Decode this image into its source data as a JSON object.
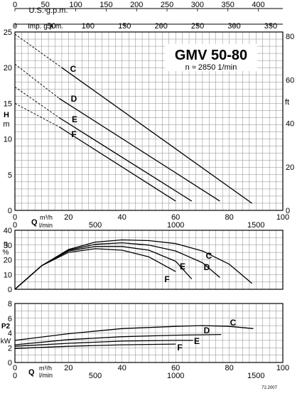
{
  "chart_data": [
    {
      "type": "line",
      "title": "GMV 50-80",
      "subtitle": "n ≈ 2850 1/min",
      "ylabel": "H\nm",
      "ylabel_right": "ft",
      "xlabel": "Q",
      "x_unit_m3h": "m³/h",
      "x_unit_lmin": "l/min",
      "top_axis_us_label": "U.S. g.p.m.",
      "top_axis_imp_label": "Imp. g.p.m.",
      "x_ticks_m3h": [
        0,
        20,
        40,
        60,
        80,
        100
      ],
      "x_ticks_lmin": [
        0,
        500,
        1000,
        1500
      ],
      "x_ticks_us_gpm": [
        0,
        50,
        100,
        150,
        200,
        250,
        300,
        350,
        400
      ],
      "x_ticks_imp_gpm": [
        0,
        50,
        100,
        150,
        200,
        250,
        300,
        350
      ],
      "y_ticks_m": [
        0,
        5,
        10,
        15,
        20,
        25
      ],
      "y_ticks_ft": [
        0,
        20,
        40,
        60,
        80
      ],
      "xlim": [
        0,
        100
      ],
      "ylim": [
        0,
        25
      ],
      "grid": true,
      "series": [
        {
          "name": "C",
          "x": [
            17.5,
            88.5
          ],
          "y": [
            20.0,
            1.0
          ],
          "dashed_from_x": 0,
          "dashed_y0": 24.7
        },
        {
          "name": "D",
          "x": [
            16.5,
            76.5
          ],
          "y": [
            15.7,
            1.3
          ],
          "dashed_from_x": 0,
          "dashed_y0": 20.5
        },
        {
          "name": "E",
          "x": [
            16.5,
            66.0
          ],
          "y": [
            13.0,
            1.3
          ],
          "dashed_from_x": 0,
          "dashed_y0": 17.3
        },
        {
          "name": "F",
          "x": [
            16.5,
            60.0
          ],
          "y": [
            11.7,
            1.3
          ],
          "dashed_from_x": 0,
          "dashed_y0": 15.0
        }
      ]
    },
    {
      "type": "line",
      "ylabel": "η\n%",
      "xlim": [
        0,
        100
      ],
      "ylim": [
        0,
        40
      ],
      "y_ticks": [
        0,
        10,
        20,
        30,
        40
      ],
      "grid": true,
      "series": [
        {
          "name": "C",
          "x": [
            0,
            10,
            20,
            30,
            40,
            50,
            60,
            70,
            80,
            88.5
          ],
          "y": [
            0,
            16,
            27,
            32,
            33.5,
            33,
            31,
            26,
            17,
            4
          ]
        },
        {
          "name": "D",
          "x": [
            0,
            10,
            20,
            30,
            40,
            50,
            60,
            70,
            76.5
          ],
          "y": [
            0,
            16,
            26.5,
            30.5,
            31.5,
            30,
            26,
            18,
            8
          ]
        },
        {
          "name": "E",
          "x": [
            0,
            10,
            20,
            30,
            40,
            50,
            60,
            66.0
          ],
          "y": [
            0,
            16,
            26,
            29,
            29,
            26.5,
            19,
            7
          ]
        },
        {
          "name": "F",
          "x": [
            0,
            10,
            20,
            30,
            40,
            50,
            60
          ],
          "y": [
            0,
            16,
            25,
            27.5,
            26.5,
            22,
            12
          ]
        }
      ]
    },
    {
      "type": "line",
      "ylabel": "P2\nkW",
      "xlabel": "Q",
      "x_unit_m3h": "m³/h",
      "x_unit_lmin": "l/min",
      "x_ticks_m3h": [
        0,
        20,
        40,
        60,
        80,
        100
      ],
      "x_ticks_lmin": [
        0,
        500,
        1000,
        1500
      ],
      "xlim": [
        0,
        100
      ],
      "ylim": [
        0,
        8
      ],
      "y_ticks": [
        0,
        2,
        4,
        6,
        8
      ],
      "grid": true,
      "series": [
        {
          "name": "C",
          "x": [
            0,
            20,
            40,
            60,
            70,
            80,
            89
          ],
          "y": [
            3.0,
            3.9,
            4.6,
            4.9,
            5.0,
            4.9,
            4.6
          ]
        },
        {
          "name": "D",
          "x": [
            0,
            20,
            40,
            60,
            77
          ],
          "y": [
            2.4,
            3.1,
            3.5,
            3.7,
            3.8
          ]
        },
        {
          "name": "E",
          "x": [
            0,
            20,
            40,
            60,
            66.5
          ],
          "y": [
            2.2,
            2.6,
            2.9,
            3.0,
            3.0
          ]
        },
        {
          "name": "F",
          "x": [
            0,
            20,
            40,
            60
          ],
          "y": [
            1.9,
            2.2,
            2.4,
            2.5
          ]
        }
      ]
    }
  ],
  "footer_code": "72.2007"
}
